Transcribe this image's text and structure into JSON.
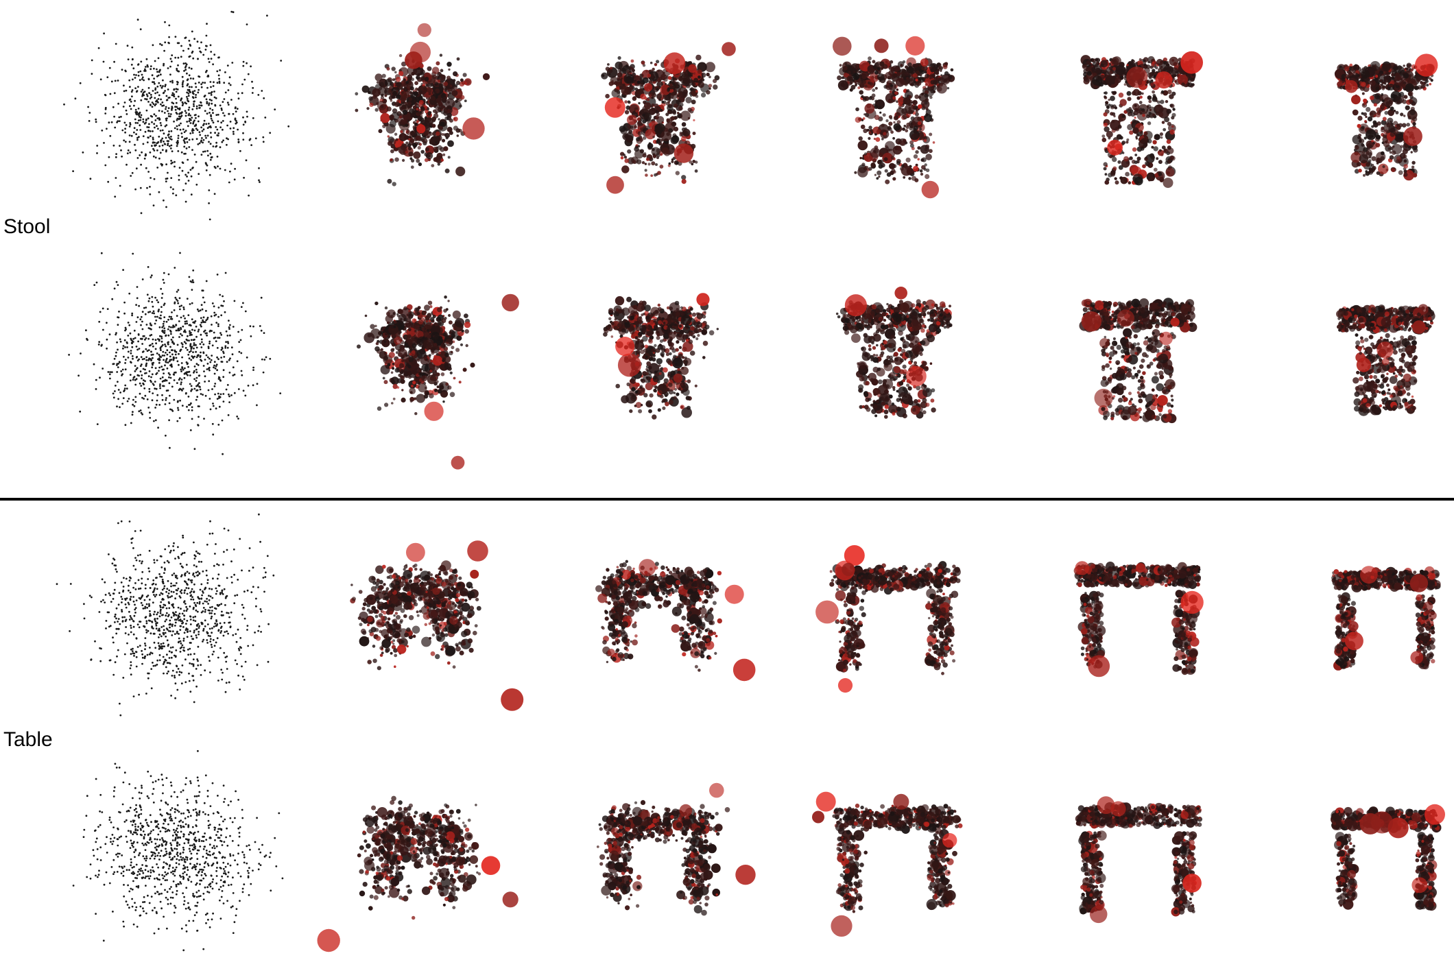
{
  "groups": [
    {
      "label": "Stool",
      "shape": "stool"
    },
    {
      "label": "Table",
      "shape": "table"
    }
  ],
  "rows_per_group": 2,
  "panels_per_row": 6,
  "colors": {
    "background": "#ffffff",
    "point": "#1a1a1a",
    "dark_red": "#4a0f0f",
    "highlight_red": "#e8271f",
    "divider": "#000000"
  }
}
